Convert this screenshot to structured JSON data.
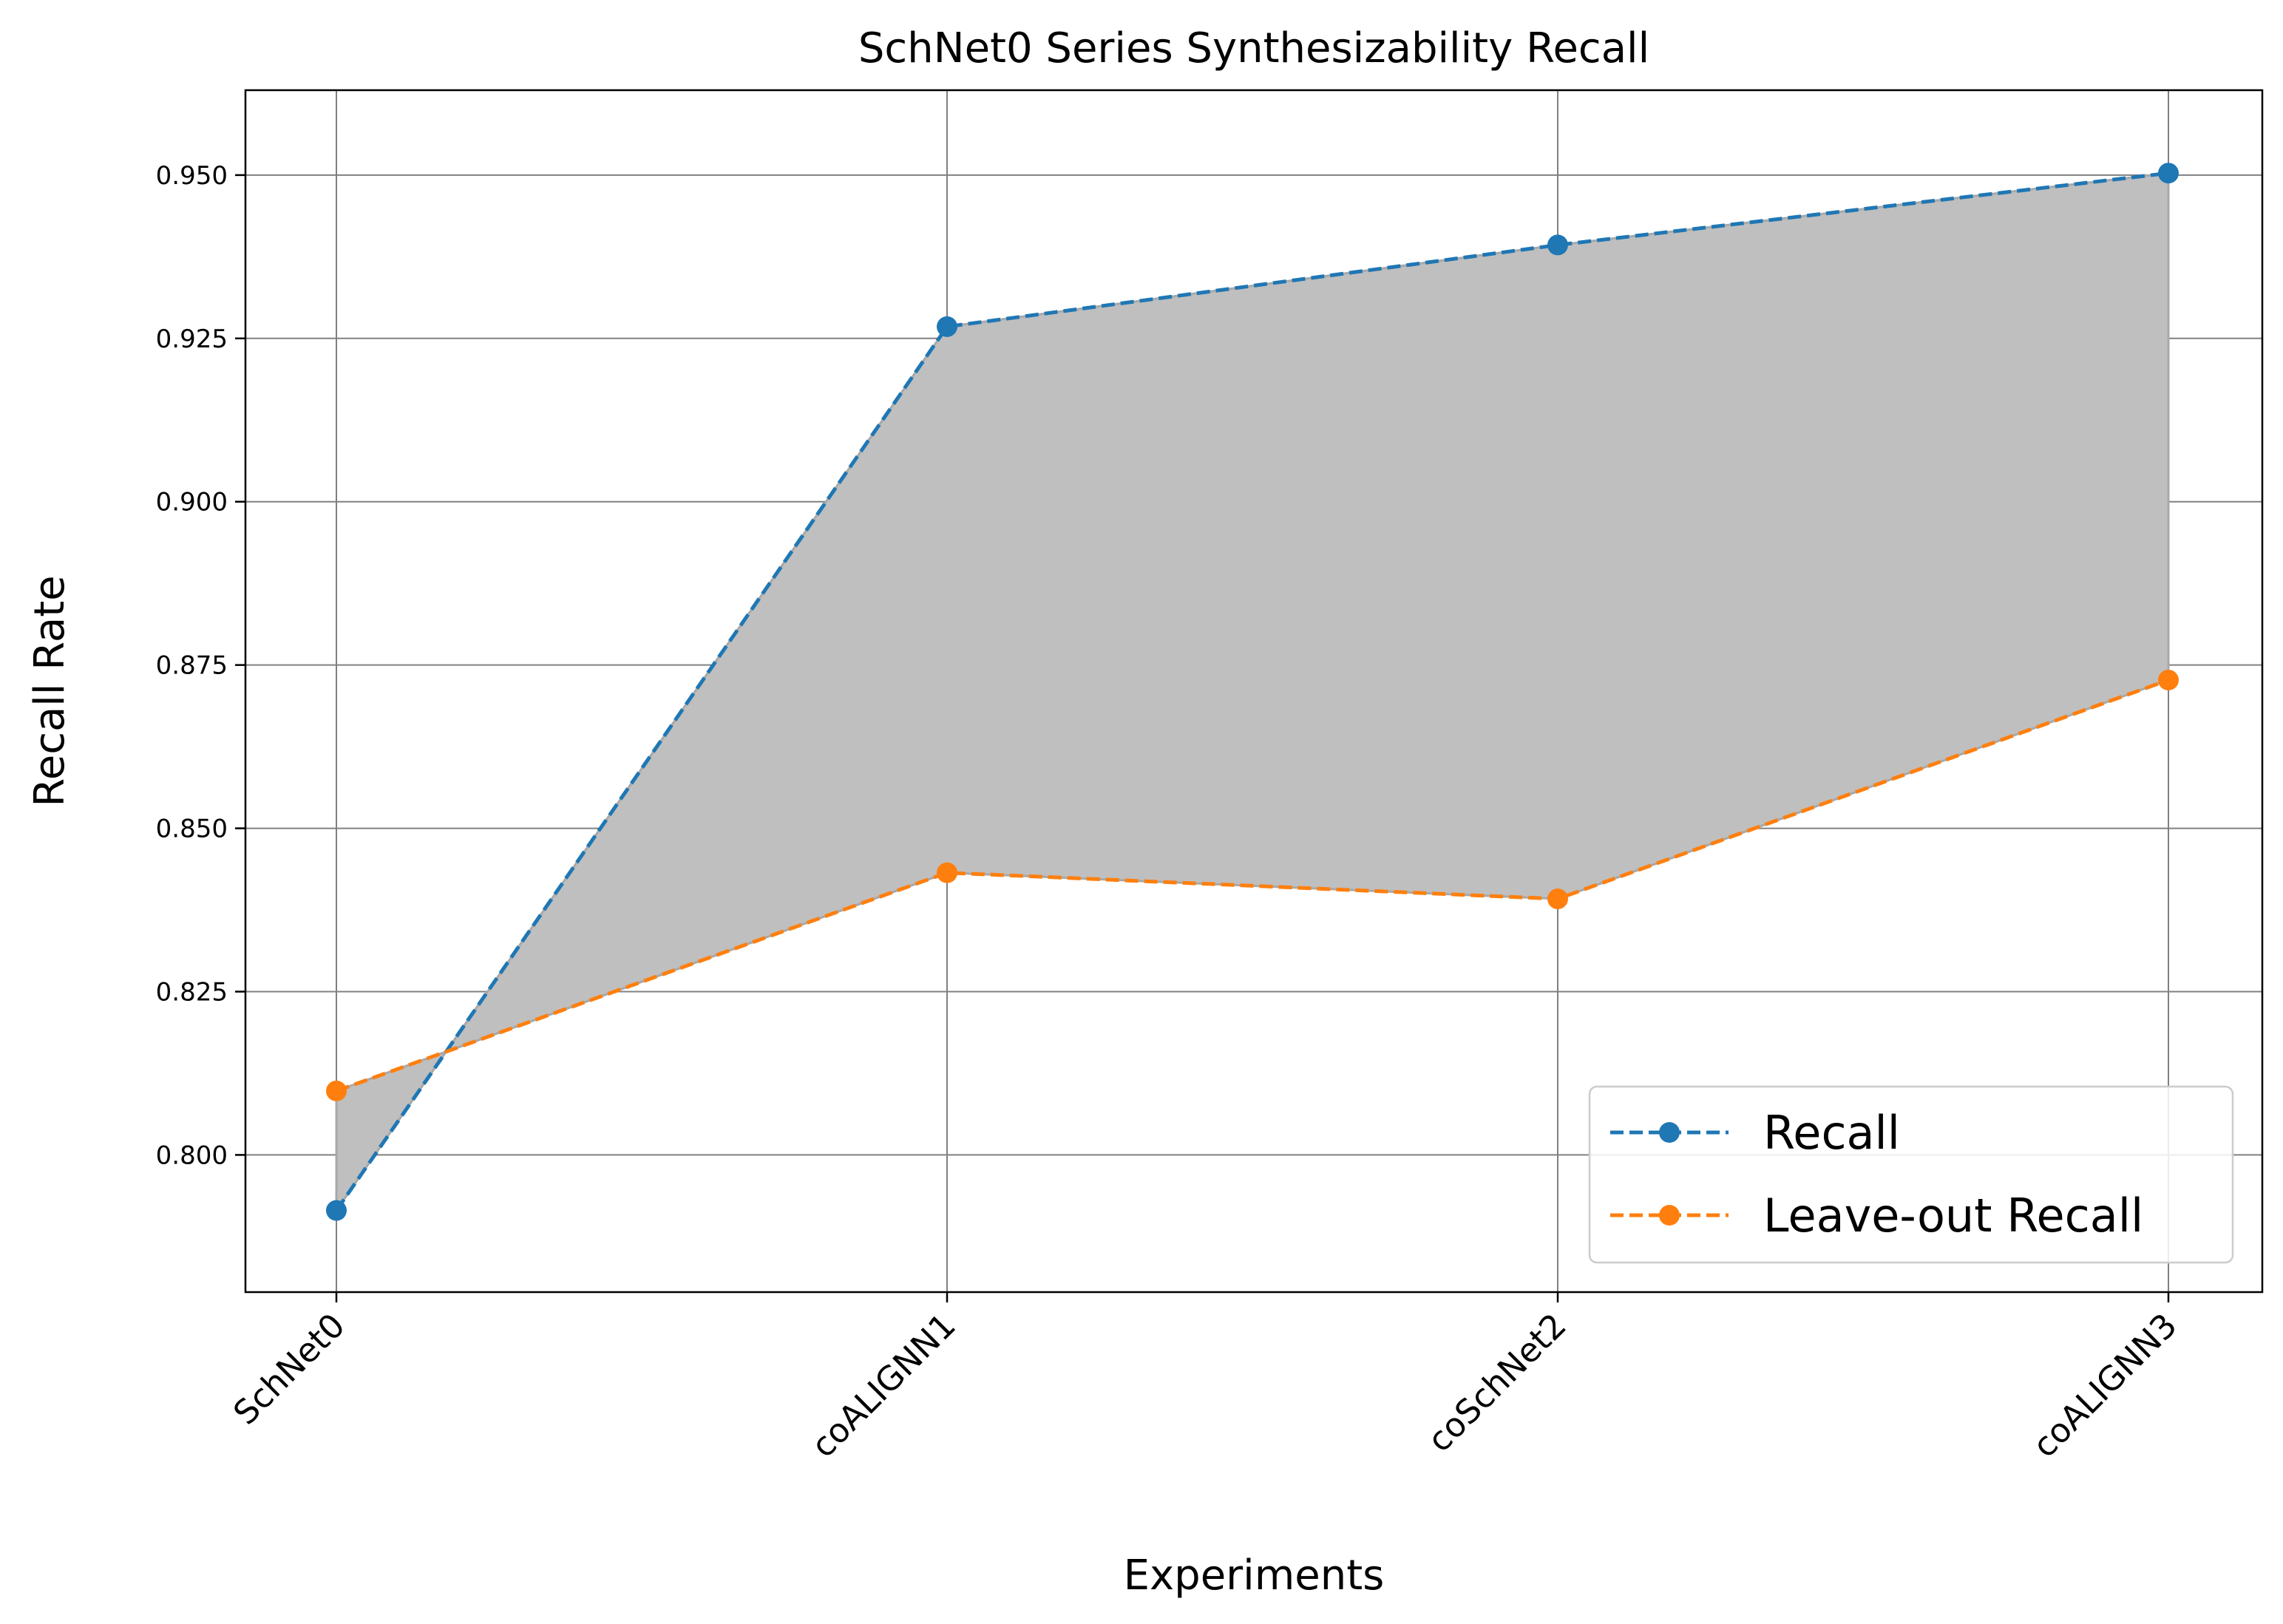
{
  "chart_data": {
    "type": "line",
    "title": "SchNet0 Series Synthesizability Recall",
    "xlabel": "Experiments",
    "ylabel": "Recall Rate",
    "categories": [
      "SchNet0",
      "coALIGNN1",
      "coSchNet2",
      "coALIGNN3"
    ],
    "series": [
      {
        "name": "Recall",
        "values": [
          0.7915,
          0.9268,
          0.9393,
          0.9503
        ],
        "color": "#1f77b4",
        "line_style": "dashed",
        "marker": "circle"
      },
      {
        "name": "Leave-out Recall",
        "values": [
          0.8098,
          0.8432,
          0.8392,
          0.8727
        ],
        "color": "#ff7f0e",
        "line_style": "dashed",
        "marker": "circle"
      }
    ],
    "fill_between": {
      "series": [
        "Recall",
        "Leave-out Recall"
      ],
      "color": "#bfbfbf"
    },
    "ylim": [
      0.779,
      0.963
    ],
    "yticks": [
      0.8,
      0.825,
      0.85,
      0.875,
      0.9,
      0.925,
      0.95
    ],
    "ytick_labels": [
      "0.800",
      "0.825",
      "0.850",
      "0.875",
      "0.900",
      "0.925",
      "0.950"
    ],
    "xtick_rotation": 45,
    "grid": true,
    "legend_position": "bottom-right"
  }
}
